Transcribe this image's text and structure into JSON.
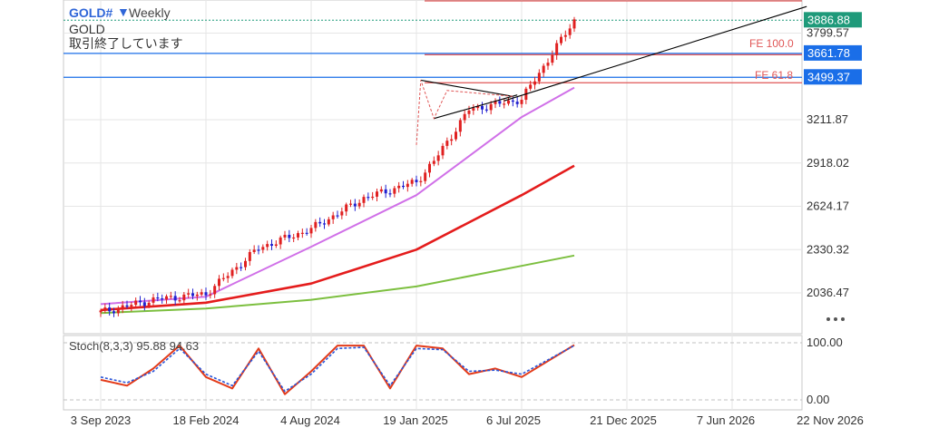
{
  "header": {
    "symbol": "GOLD#",
    "timeframe": "Weekly",
    "instrument": "GOLD",
    "status": "取引終了しています"
  },
  "colors": {
    "candle_up": "#e02020",
    "candle_down": "#2020d0",
    "ma_fast": "#d070e8",
    "ma_mid": "#e41c1c",
    "ma_slow": "#7cbf3f",
    "stoch_k": "#e33b1a",
    "stoch_d": "#2a55d8",
    "current_price_box": "#1f9a7a",
    "level_box": "#1a6ee8",
    "fe_line": "#e05656",
    "trendline": "#000000"
  },
  "price_axis": {
    "ticks": [
      "3799.57",
      "3211.87",
      "2918.02",
      "2624.17",
      "2330.32",
      "2036.47"
    ],
    "current_price": "3886.88",
    "fe_100_price": "3661.78",
    "fe_618_price": "3499.37"
  },
  "time_axis": {
    "ticks": [
      "3 Sep 2023",
      "18 Feb 2024",
      "4 Aug 2024",
      "19 Jan 2025",
      "6 Jul 2025",
      "21 Dec 2025",
      "7 Jun 2026",
      "22 Nov 2026"
    ]
  },
  "annotations": {
    "fe_100_label": "FE 100.0",
    "fe_618_label": "FE 61.8"
  },
  "stochastic": {
    "label": "Stoch(8,3,3) 95.88 94.63",
    "level_top": "100.00",
    "level_bottom": "0.00"
  },
  "chart_data": {
    "type": "line",
    "title": "GOLD# Weekly",
    "ylim": [
      1900,
      3980
    ],
    "series": [
      {
        "name": "GOLD#",
        "x": [
          "2023-09-03",
          "2023-11-26",
          "2024-02-18",
          "2024-05-12",
          "2024-08-04",
          "2024-10-27",
          "2025-01-19",
          "2025-02-16",
          "2025-04-13",
          "2025-07-06",
          "2025-09-28"
        ],
        "values": [
          1905,
          1990,
          2030,
          2340,
          2470,
          2680,
          2790,
          2930,
          3280,
          3350,
          3886.88
        ]
      },
      {
        "x": [
          "2023-09-03",
          "2024-02-18",
          "2024-08-04",
          "2025-01-19",
          "2025-07-06",
          "2025-09-28"
        ],
        "values": [
          1960,
          2010,
          2350,
          2700,
          3230,
          3430
        ]
      },
      {
        "x": [
          "2023-09-03",
          "2024-02-18",
          "2024-08-04",
          "2025-01-19",
          "2025-07-06",
          "2025-09-28"
        ],
        "values": [
          1920,
          1970,
          2100,
          2330,
          2700,
          2900
        ]
      },
      {
        "x": [
          "2023-09-03",
          "2024-02-18",
          "2024-08-04",
          "2025-01-19",
          "2025-07-06",
          "2025-09-28"
        ],
        "values": [
          1900,
          1930,
          1990,
          2080,
          2220,
          2290
        ]
      }
    ],
    "stochastic": {
      "ylim": [
        0,
        100
      ],
      "series": [
        {
          "x": [
            "2023-09-03",
            "2023-10-15",
            "2023-11-26",
            "2024-01-07",
            "2024-02-18",
            "2024-03-31",
            "2024-05-12",
            "2024-06-23",
            "2024-08-04",
            "2024-09-15",
            "2024-10-27",
            "2024-12-08",
            "2025-01-19",
            "2025-03-02",
            "2025-04-13",
            "2025-05-25",
            "2025-07-06",
            "2025-09-28"
          ],
          "values": [
            35,
            25,
            55,
            95,
            40,
            20,
            90,
            10,
            50,
            95,
            95,
            20,
            95,
            90,
            45,
            55,
            40,
            96
          ]
        },
        {
          "x": [
            "2023-09-03",
            "2023-10-15",
            "2023-11-26",
            "2024-01-07",
            "2024-02-18",
            "2024-03-31",
            "2024-05-12",
            "2024-06-23",
            "2024-08-04",
            "2024-09-15",
            "2024-10-27",
            "2024-12-08",
            "2025-01-19",
            "2025-03-02",
            "2025-04-13",
            "2025-05-25",
            "2025-07-06",
            "2025-09-28"
          ],
          "values": [
            40,
            30,
            50,
            90,
            45,
            25,
            85,
            15,
            45,
            90,
            92,
            25,
            90,
            88,
            50,
            52,
            45,
            95
          ]
        }
      ]
    }
  }
}
